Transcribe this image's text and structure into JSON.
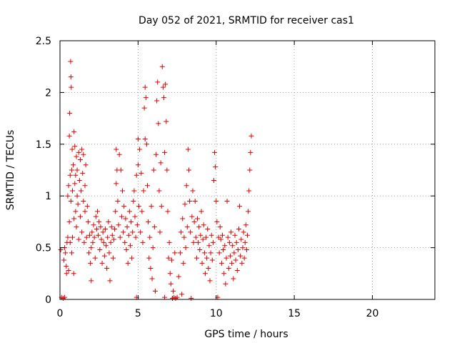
{
  "chart_data": {
    "type": "scatter",
    "title": "Day 052 of 2021, SRMTID for receiver cas1",
    "xlabel": "GPS time / hours",
    "ylabel": "SRMTID / TECUs",
    "xlim": [
      0,
      24
    ],
    "ylim": [
      0,
      2.5
    ],
    "xticks": [
      0,
      5,
      10,
      15,
      20
    ],
    "yticks": [
      0,
      0.5,
      1,
      1.5,
      2,
      2.5
    ],
    "xtick_labels": [
      "0",
      "5",
      "10",
      "15",
      "20"
    ],
    "ytick_labels": [
      "0",
      "0.5",
      "1",
      "1.5",
      "2",
      "2.5"
    ],
    "grid": true,
    "marker": "+",
    "color": "#e00000",
    "series": [
      {
        "name": "SRMTID",
        "points": [
          [
            0.05,
            0.48
          ],
          [
            0.1,
            0.02
          ],
          [
            0.2,
            0.01
          ],
          [
            0.3,
            0.02
          ],
          [
            0.25,
            0.38
          ],
          [
            0.3,
            0.5
          ],
          [
            0.35,
            0.45
          ],
          [
            0.4,
            0.32
          ],
          [
            0.42,
            0.25
          ],
          [
            0.45,
            0.55
          ],
          [
            0.5,
            0.6
          ],
          [
            0.5,
            1.0
          ],
          [
            0.55,
            0.28
          ],
          [
            0.55,
            1.1
          ],
          [
            0.6,
            1.58
          ],
          [
            0.6,
            0.75
          ],
          [
            0.62,
            1.8
          ],
          [
            0.65,
            0.55
          ],
          [
            0.65,
            1.2
          ],
          [
            0.68,
            2.3
          ],
          [
            0.7,
            2.15
          ],
          [
            0.7,
            0.95
          ],
          [
            0.72,
            2.05
          ],
          [
            0.75,
            1.25
          ],
          [
            0.75,
            0.45
          ],
          [
            0.78,
            1.45
          ],
          [
            0.8,
            1.05
          ],
          [
            0.8,
            0.6
          ],
          [
            0.85,
            1.3
          ],
          [
            0.88,
            0.25
          ],
          [
            0.9,
            1.62
          ],
          [
            0.9,
            0.78
          ],
          [
            0.95,
            1.12
          ],
          [
            0.95,
            1.48
          ],
          [
            1.0,
            0.85
          ],
          [
            1.0,
            1.2
          ],
          [
            1.05,
            1.38
          ],
          [
            1.05,
            0.7
          ],
          [
            1.1,
            1.0
          ],
          [
            1.1,
            1.25
          ],
          [
            1.15,
            0.92
          ],
          [
            1.2,
            1.42
          ],
          [
            1.2,
            0.58
          ],
          [
            1.25,
            1.15
          ],
          [
            1.3,
            0.8
          ],
          [
            1.3,
            1.35
          ],
          [
            1.35,
            1.05
          ],
          [
            1.4,
            1.45
          ],
          [
            1.4,
            0.65
          ],
          [
            1.45,
            1.22
          ],
          [
            1.5,
            0.95
          ],
          [
            1.5,
            1.4
          ],
          [
            1.55,
            0.55
          ],
          [
            1.6,
            1.1
          ],
          [
            1.6,
            0.85
          ],
          [
            1.65,
            1.3
          ],
          [
            1.7,
            0.6
          ],
          [
            1.75,
            0.9
          ],
          [
            1.8,
            0.75
          ],
          [
            1.85,
            0.45
          ],
          [
            1.9,
            0.62
          ],
          [
            1.95,
            0.35
          ],
          [
            2.0,
            0.5
          ],
          [
            2.0,
            0.18
          ],
          [
            2.05,
            0.65
          ],
          [
            2.1,
            0.55
          ],
          [
            2.15,
            0.72
          ],
          [
            2.2,
            0.6
          ],
          [
            2.25,
            0.4
          ],
          [
            2.3,
            0.8
          ],
          [
            2.35,
            0.68
          ],
          [
            2.4,
            0.85
          ],
          [
            2.45,
            0.62
          ],
          [
            2.5,
            0.75
          ],
          [
            2.55,
            0.48
          ],
          [
            2.6,
            0.7
          ],
          [
            2.65,
            0.58
          ],
          [
            2.7,
            0.35
          ],
          [
            2.75,
            0.65
          ],
          [
            2.8,
            0.55
          ],
          [
            2.85,
            0.42
          ],
          [
            2.9,
            0.68
          ],
          [
            2.95,
            0.52
          ],
          [
            3.0,
            0.3
          ],
          [
            3.05,
            0.6
          ],
          [
            3.1,
            0.75
          ],
          [
            3.15,
            0.45
          ],
          [
            3.2,
            0.18
          ],
          [
            3.25,
            0.55
          ],
          [
            3.3,
            0.7
          ],
          [
            3.35,
            0.62
          ],
          [
            3.4,
            0.4
          ],
          [
            3.45,
            0.58
          ],
          [
            3.5,
            0.68
          ],
          [
            3.55,
            0.85
          ],
          [
            3.6,
            1.12
          ],
          [
            3.6,
            1.45
          ],
          [
            3.65,
            1.25
          ],
          [
            3.7,
            0.95
          ],
          [
            3.75,
            0.72
          ],
          [
            3.8,
            1.4
          ],
          [
            3.85,
            0.6
          ],
          [
            3.9,
            1.25
          ],
          [
            3.95,
            0.8
          ],
          [
            4.0,
            1.05
          ],
          [
            4.05,
            0.65
          ],
          [
            4.1,
            0.9
          ],
          [
            4.15,
            0.55
          ],
          [
            4.2,
            0.78
          ],
          [
            4.25,
            0.48
          ],
          [
            4.3,
            0.7
          ],
          [
            4.35,
            0.35
          ],
          [
            4.4,
            0.62
          ],
          [
            4.45,
            0.85
          ],
          [
            4.5,
            0.52
          ],
          [
            4.55,
            0.75
          ],
          [
            4.6,
            0.4
          ],
          [
            4.65,
            0.65
          ],
          [
            4.7,
            0.95
          ],
          [
            4.75,
            1.05
          ],
          [
            4.8,
            0.8
          ],
          [
            4.85,
            0.6
          ],
          [
            4.9,
            0.02
          ],
          [
            4.9,
            1.2
          ],
          [
            4.95,
            0.72
          ],
          [
            5.0,
            1.55
          ],
          [
            5.0,
            1.3
          ],
          [
            5.05,
            0.9
          ],
          [
            5.1,
            1.45
          ],
          [
            5.15,
            0.65
          ],
          [
            5.2,
            1.22
          ],
          [
            5.25,
            0.85
          ],
          [
            5.3,
            0.55
          ],
          [
            5.35,
            1.05
          ],
          [
            5.4,
            1.85
          ],
          [
            5.45,
            2.05
          ],
          [
            5.45,
            1.55
          ],
          [
            5.5,
            1.95
          ],
          [
            5.55,
            1.5
          ],
          [
            5.6,
            1.1
          ],
          [
            5.65,
            0.75
          ],
          [
            5.7,
            0.4
          ],
          [
            5.75,
            0.6
          ],
          [
            5.8,
            0.3
          ],
          [
            5.85,
            0.9
          ],
          [
            5.9,
            0.2
          ],
          [
            5.95,
            0.5
          ],
          [
            6.0,
            1.25
          ],
          [
            6.05,
            0.7
          ],
          [
            6.1,
            0.08
          ],
          [
            6.15,
            1.4
          ],
          [
            6.2,
            1.92
          ],
          [
            6.25,
            2.1
          ],
          [
            6.3,
            1.7
          ],
          [
            6.35,
            1.05
          ],
          [
            6.4,
            0.65
          ],
          [
            6.45,
            1.32
          ],
          [
            6.5,
            0.9
          ],
          [
            6.55,
            2.25
          ],
          [
            6.6,
            2.05
          ],
          [
            6.65,
            1.95
          ],
          [
            6.7,
            0.02
          ],
          [
            6.7,
            1.42
          ],
          [
            6.75,
            2.08
          ],
          [
            6.8,
            1.72
          ],
          [
            6.85,
            1.25
          ],
          [
            6.9,
            0.85
          ],
          [
            6.95,
            0.4
          ],
          [
            7.0,
            0.55
          ],
          [
            7.05,
            0.25
          ],
          [
            7.1,
            0.15
          ],
          [
            7.15,
            0.38
          ],
          [
            7.2,
            0.01
          ],
          [
            7.25,
            0.08
          ],
          [
            7.3,
            0.02
          ],
          [
            7.35,
            0.45
          ],
          [
            7.4,
            0.01
          ],
          [
            7.5,
            0.02
          ],
          [
            7.6,
            0.22
          ],
          [
            7.7,
            0.45
          ],
          [
            7.75,
            0.65
          ],
          [
            7.8,
            0.05
          ],
          [
            7.85,
            0.78
          ],
          [
            7.9,
            0.35
          ],
          [
            7.95,
            0.6
          ],
          [
            8.0,
            0.92
          ],
          [
            8.05,
            0.5
          ],
          [
            8.1,
            1.1
          ],
          [
            8.15,
            0.7
          ],
          [
            8.2,
            1.45
          ],
          [
            8.25,
            1.25
          ],
          [
            8.3,
            0.95
          ],
          [
            8.35,
            0.65
          ],
          [
            8.4,
            0.01
          ],
          [
            8.45,
            0.8
          ],
          [
            8.5,
            1.05
          ],
          [
            8.55,
            0.55
          ],
          [
            8.6,
            0.75
          ],
          [
            8.65,
            0.95
          ],
          [
            8.7,
            0.6
          ],
          [
            8.75,
            0.4
          ],
          [
            8.8,
            0.78
          ],
          [
            8.85,
            0.55
          ],
          [
            8.9,
            0.7
          ],
          [
            8.95,
            0.48
          ],
          [
            9.0,
            0.62
          ],
          [
            9.05,
            0.85
          ],
          [
            9.1,
            0.35
          ],
          [
            9.15,
            0.58
          ],
          [
            9.2,
            0.72
          ],
          [
            9.25,
            0.45
          ],
          [
            9.3,
            0.25
          ],
          [
            9.35,
            0.6
          ],
          [
            9.4,
            0.4
          ],
          [
            9.45,
            0.68
          ],
          [
            9.5,
            0.3
          ],
          [
            9.55,
            0.52
          ],
          [
            9.6,
            0.18
          ],
          [
            9.65,
            0.45
          ],
          [
            9.7,
            0.62
          ],
          [
            9.75,
            0.38
          ],
          [
            9.8,
            0.55
          ],
          [
            9.85,
            1.15
          ],
          [
            9.9,
            1.42
          ],
          [
            9.95,
            1.28
          ],
          [
            10.0,
            0.95
          ],
          [
            10.05,
            0.75
          ],
          [
            10.1,
            0.02
          ],
          [
            10.15,
            0.6
          ],
          [
            10.2,
            0.45
          ],
          [
            10.25,
            0.7
          ],
          [
            10.3,
            0.58
          ],
          [
            10.35,
            0.35
          ],
          [
            10.4,
            0.62
          ],
          [
            10.45,
            0.48
          ],
          [
            10.5,
            0.25
          ],
          [
            10.55,
            0.52
          ],
          [
            10.6,
            0.15
          ],
          [
            10.65,
            0.4
          ],
          [
            10.7,
            0.95
          ],
          [
            10.75,
            0.6
          ],
          [
            10.8,
            0.3
          ],
          [
            10.85,
            0.55
          ],
          [
            10.9,
            0.42
          ],
          [
            10.95,
            0.65
          ],
          [
            11.0,
            0.35
          ],
          [
            11.05,
            0.52
          ],
          [
            11.1,
            0.2
          ],
          [
            11.15,
            0.45
          ],
          [
            11.2,
            0.62
          ],
          [
            11.25,
            0.38
          ],
          [
            11.3,
            0.55
          ],
          [
            11.35,
            0.28
          ],
          [
            11.4,
            0.48
          ],
          [
            11.45,
            0.68
          ],
          [
            11.5,
            0.9
          ],
          [
            11.55,
            0.42
          ],
          [
            11.6,
            0.58
          ],
          [
            11.65,
            0.35
          ],
          [
            11.7,
            0.5
          ],
          [
            11.75,
            0.65
          ],
          [
            11.8,
            0.4
          ],
          [
            11.85,
            0.55
          ],
          [
            11.9,
            0.72
          ],
          [
            11.95,
            0.48
          ],
          [
            12.0,
            0.62
          ],
          [
            12.05,
            0.85
          ],
          [
            12.1,
            1.05
          ],
          [
            12.15,
            1.25
          ],
          [
            12.2,
            1.42
          ],
          [
            12.25,
            1.58
          ]
        ]
      }
    ]
  }
}
